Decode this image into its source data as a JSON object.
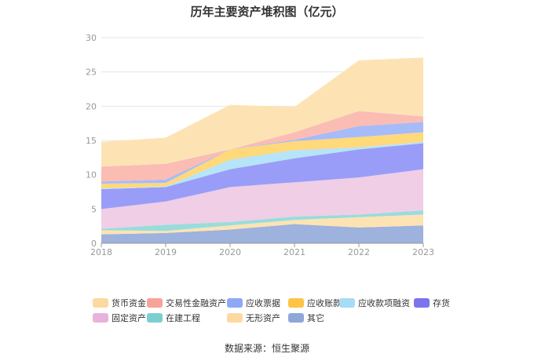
{
  "chart_data": {
    "type": "area",
    "stacked": true,
    "title": "历年主要资产堆积图（亿元）",
    "x": [
      "2018",
      "2019",
      "2020",
      "2021",
      "2022",
      "2023"
    ],
    "ylim": [
      0,
      30
    ],
    "yticks": [
      0,
      5,
      10,
      15,
      20,
      25,
      30
    ],
    "grid": true,
    "legend_position": "bottom",
    "series": [
      {
        "name": "其它",
        "color": "#9db2dc",
        "values": [
          1.3,
          1.5,
          2.0,
          2.8,
          2.3,
          2.6
        ]
      },
      {
        "name": "无形资产",
        "color": "#fde3b4",
        "values": [
          0.6,
          0.3,
          0.6,
          0.6,
          1.5,
          1.6
        ]
      },
      {
        "name": "在建工程",
        "color": "#99dcdc",
        "values": [
          0.2,
          0.9,
          0.5,
          0.5,
          0.4,
          0.6
        ]
      },
      {
        "name": "固定资产",
        "color": "#efcee6",
        "values": [
          2.9,
          3.4,
          5.1,
          5.0,
          5.4,
          6.0
        ]
      },
      {
        "name": "存货",
        "color": "#999df8",
        "values": [
          2.9,
          2.1,
          2.6,
          3.5,
          4.1,
          3.8
        ]
      },
      {
        "name": "应收款项融资",
        "color": "#b6e4f8",
        "values": [
          0.1,
          0.1,
          1.4,
          1.2,
          0.3,
          0.2
        ]
      },
      {
        "name": "应收账款",
        "color": "#ffd97a",
        "values": [
          0.7,
          0.5,
          1.5,
          1.3,
          1.5,
          1.4
        ]
      },
      {
        "name": "应收票据",
        "color": "#a7bbf8",
        "values": [
          0.3,
          0.5,
          0.0,
          0.2,
          1.6,
          1.5
        ]
      },
      {
        "name": "交易性金融资产",
        "color": "#fbbcb4",
        "values": [
          2.2,
          2.3,
          0.0,
          1.1,
          2.2,
          0.8
        ]
      },
      {
        "name": "货币资金",
        "color": "#fde3b4",
        "values": [
          3.6,
          3.8,
          6.5,
          3.7,
          7.4,
          8.6
        ]
      }
    ],
    "legend": [
      {
        "name": "货币资金",
        "color": "#fdd9a0"
      },
      {
        "name": "交易性金融资产",
        "color": "#f8a39a"
      },
      {
        "name": "应收票据",
        "color": "#8ea8f5"
      },
      {
        "name": "应收账款",
        "color": "#fdc445"
      },
      {
        "name": "应收款项融资",
        "color": "#a6dcf6"
      },
      {
        "name": "存货",
        "color": "#7b74ee"
      },
      {
        "name": "固定资产",
        "color": "#e7b3dc"
      },
      {
        "name": "在建工程",
        "color": "#7ccfd1"
      },
      {
        "name": "无形资产",
        "color": "#fdd9a0"
      },
      {
        "name": "其它",
        "color": "#8fa6d8"
      }
    ]
  },
  "footer": {
    "source": "数据来源：恒生聚源"
  }
}
